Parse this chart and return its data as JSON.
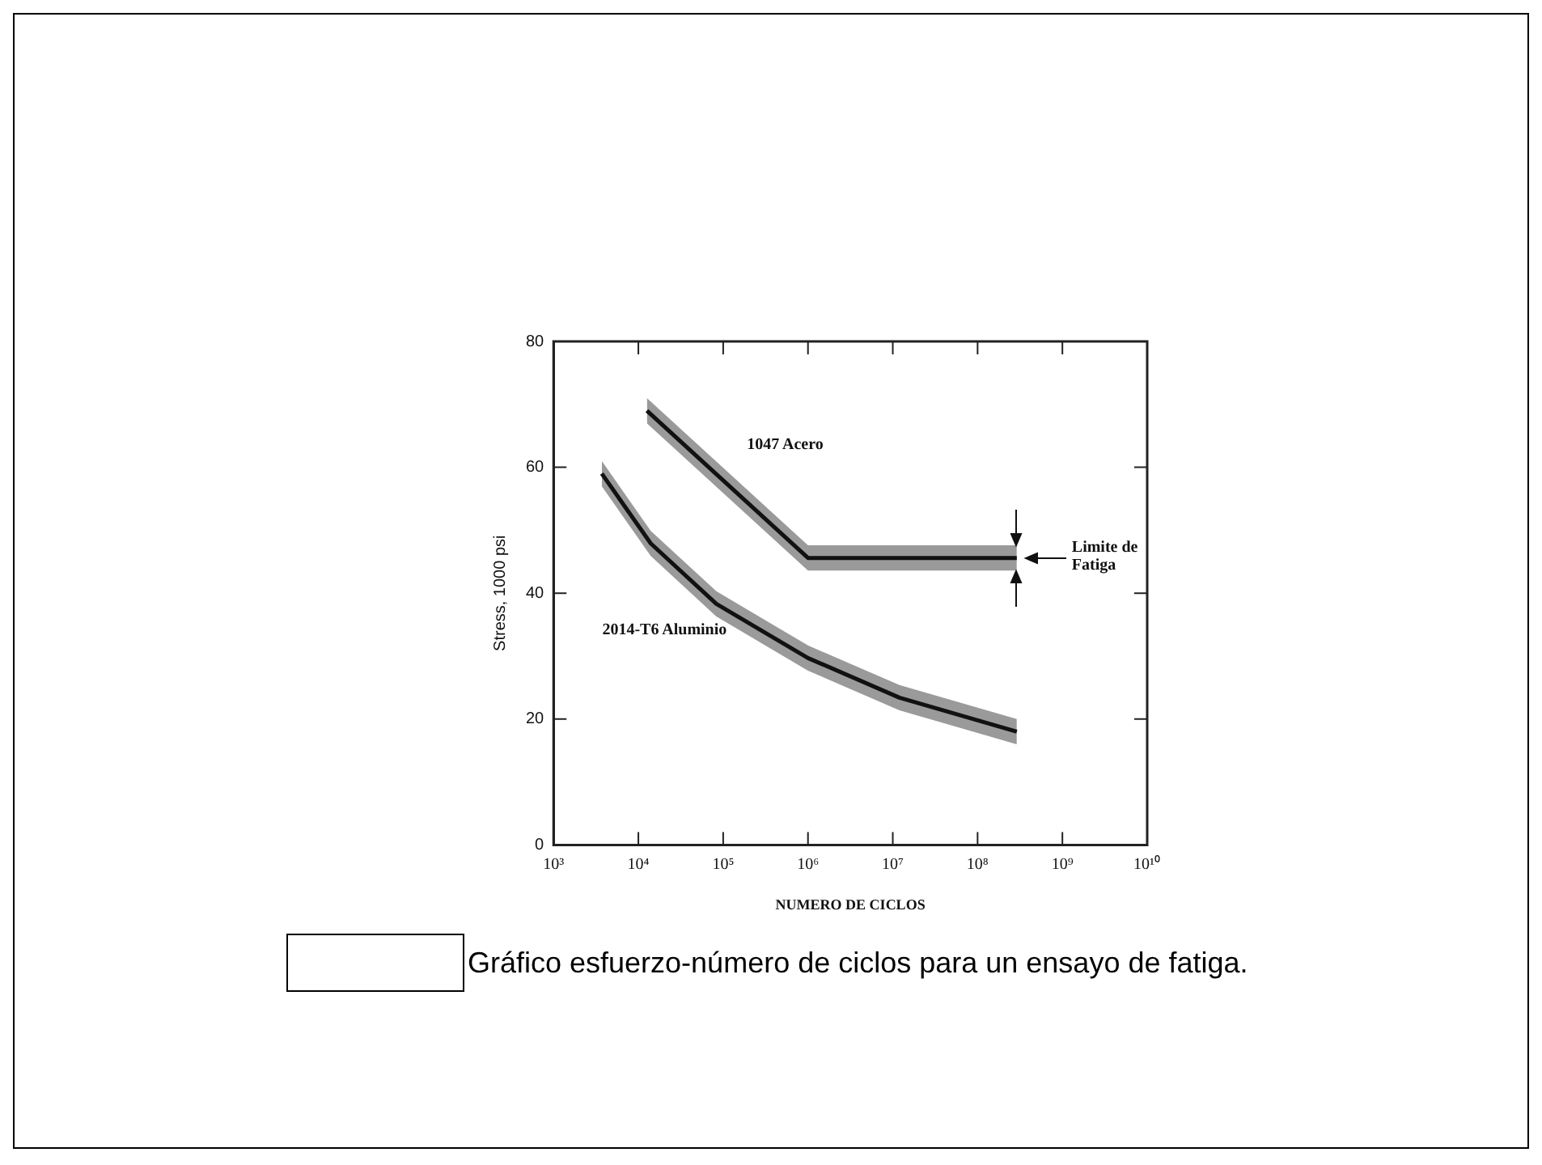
{
  "chart_data": {
    "type": "line",
    "xlabel": "NUMERO DE CICLOS",
    "ylabel": "Stress, 1000 psi",
    "series": [
      {
        "name": "1047 Acero",
        "color": "#111111",
        "x": [
          12600,
          1000000,
          290000000
        ],
        "values": [
          69,
          45.6,
          45.6
        ],
        "lower": [
          67,
          43.6,
          43.6
        ],
        "upper": [
          71,
          47.6,
          47.6
        ]
      },
      {
        "name": "2014-T6 Aluminio",
        "color": "#111111",
        "x": [
          3700,
          14000,
          83000,
          1000000,
          12000000,
          290000000
        ],
        "values": [
          59,
          47.9,
          38.3,
          29.7,
          23.4,
          18
        ],
        "lower": [
          57,
          45.9,
          36.3,
          27.7,
          21.4,
          16
        ],
        "upper": [
          61,
          49.9,
          40.3,
          31.7,
          25.4,
          20
        ]
      }
    ],
    "xlim": [
      1000,
      10000000000
    ],
    "xticks": [
      {
        "value": 1000,
        "label": "10³"
      },
      {
        "value": 10000,
        "label": "10⁴"
      },
      {
        "value": 100000,
        "label": "10⁵"
      },
      {
        "value": 1000000,
        "label": "10⁶"
      },
      {
        "value": 10000000,
        "label": "10⁷"
      },
      {
        "value": 100000000,
        "label": "10⁸"
      },
      {
        "value": 1000000000,
        "label": "10⁹"
      },
      {
        "value": 10000000000,
        "label": "10¹⁰"
      }
    ],
    "ylim": [
      0,
      80
    ],
    "yticks": [
      0,
      20,
      40,
      60,
      80
    ],
    "log": "x",
    "grid": false,
    "legend": false,
    "annotations": [
      "Limite de Fatiga",
      "Gráfico esfuerzo-número de ciclos para un ensayo de fatiga."
    ]
  }
}
